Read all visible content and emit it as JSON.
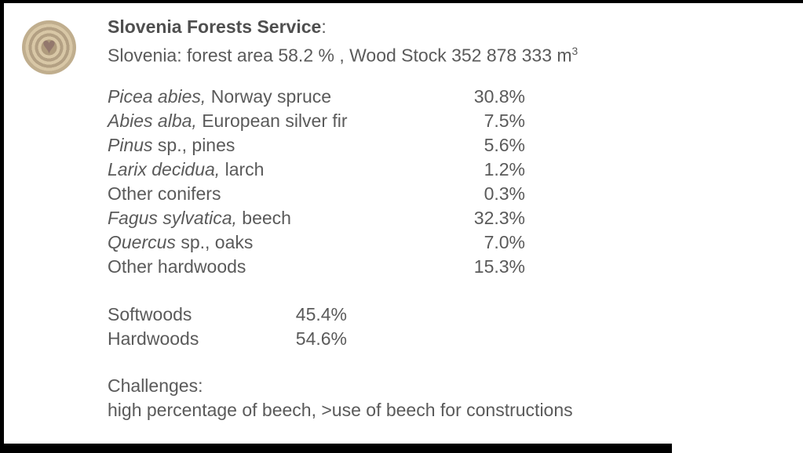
{
  "page": {
    "background": "#ffffff",
    "frame_color": "#000000",
    "text_color": "#5a5a5a"
  },
  "logo": {
    "description": "wood cross-section tree rings with heart",
    "ring_light": "#d8c7a6",
    "ring_dark": "#b3a083",
    "heart_color": "#93786d",
    "heart_glyph": "♥"
  },
  "header": {
    "title": "Slovenia Forests Service",
    "title_colon": ":",
    "subtitle_text": "Slovenia: forest area 58.2 % , Wood Stock 352 878 333 m",
    "subtitle_superscript": "3"
  },
  "species_table": {
    "rows": [
      {
        "latin": "Picea abies,",
        "common": " Norway spruce",
        "value": "30.8%"
      },
      {
        "latin": "Abies alba,",
        "common": " European silver fir",
        "value": "7.5%"
      },
      {
        "latin": "Pinus",
        "common": " sp., pines",
        "value": "5.6%"
      },
      {
        "latin": "Larix decidua,",
        "common": " larch",
        "value": "1.2%"
      },
      {
        "latin": "",
        "common": "Other conifers",
        "value": "0.3%"
      },
      {
        "latin": "Fagus sylvatica,",
        "common": " beech",
        "value": "32.3%"
      },
      {
        "latin": "Quercus",
        "common": " sp., oaks",
        "value": "7.0%"
      },
      {
        "latin": "",
        "common": "Other hardwoods",
        "value": "15.3%"
      }
    ]
  },
  "summary": {
    "rows": [
      {
        "label": "Softwoods",
        "value": "45.4%"
      },
      {
        "label": "Hardwoods",
        "value": "54.6%"
      }
    ]
  },
  "challenges": {
    "heading": "Challenges:",
    "line": "high percentage of beech, >use of beech for constructions"
  }
}
